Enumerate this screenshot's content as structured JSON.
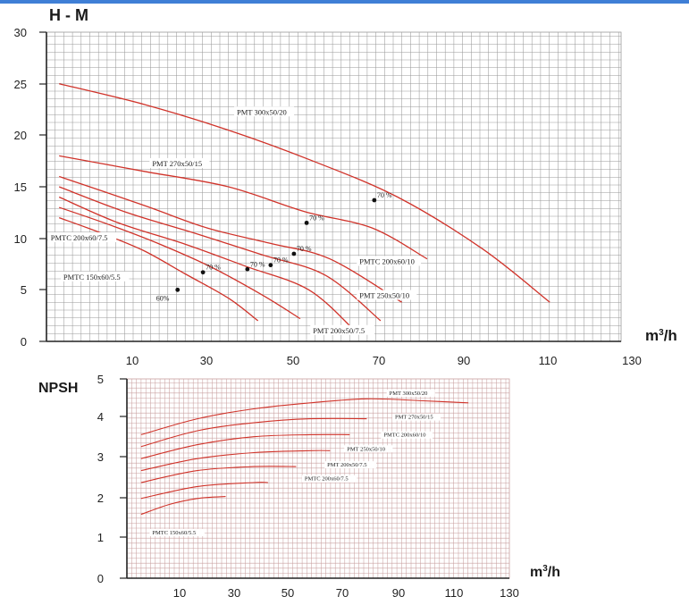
{
  "chart_data": [
    {
      "type": "line",
      "title": "H - M",
      "xlabel": "m³/h",
      "xlim": [
        0,
        130
      ],
      "ylim": [
        0,
        30
      ],
      "x_ticks": [
        "10",
        "30",
        "50",
        "70",
        "90",
        "110",
        "130"
      ],
      "y_ticks": [
        "0",
        "5",
        "10",
        "15",
        "20",
        "25",
        "30"
      ],
      "grid": true,
      "colors": {
        "curve": "#d0332a",
        "grid": "#9a9a9a",
        "axis": "#222222"
      },
      "series": [
        {
          "name": "PMT 300x50/20",
          "points": [
            [
              10,
              25
            ],
            [
              30,
              23
            ],
            [
              50,
              20.5
            ],
            [
              70,
              17.5
            ],
            [
              90,
              14
            ],
            [
              110,
              9
            ],
            [
              126,
              3.8
            ]
          ],
          "label_at": [
            52,
            22
          ]
        },
        {
          "name": "PMT 270x50/15",
          "points": [
            [
              10,
              18
            ],
            [
              30,
              16.5
            ],
            [
              50,
              15
            ],
            [
              68,
              12.6
            ],
            [
              84,
              11
            ],
            [
              97,
              8
            ]
          ],
          "label_at": [
            32,
            17
          ]
        },
        {
          "name": "PMTC 200x60/10",
          "points": [
            [
              10,
              16
            ],
            [
              30,
              13.2
            ],
            [
              45,
              11
            ],
            [
              60,
              9.5
            ],
            [
              74,
              8
            ],
            [
              91,
              3.8
            ]
          ],
          "label_at": [
            81,
            7.5
          ]
        },
        {
          "name": "PMT 250x50/10",
          "points": [
            [
              10,
              15
            ],
            [
              26,
              12.5
            ],
            [
              42,
              10.5
            ],
            [
              58,
              8.4
            ],
            [
              73,
              6.4
            ],
            [
              86,
              2
            ]
          ],
          "label_at": [
            81,
            4.2
          ]
        },
        {
          "name": "PMT 200x50/7.5",
          "points": [
            [
              10,
              14
            ],
            [
              24,
              11.5
            ],
            [
              40,
              9.4
            ],
            [
              54,
              7.3
            ],
            [
              69,
              5
            ],
            [
              80,
              1
            ]
          ],
          "label_at": [
            70,
            0.8
          ]
        },
        {
          "name": "PMTC 200x60/7.5",
          "points": [
            [
              10,
              13
            ],
            [
              22,
              11.3
            ],
            [
              34,
              9.4
            ],
            [
              46,
              7.2
            ],
            [
              58,
              4.5
            ],
            [
              67,
              2.2
            ]
          ],
          "label_at": [
            8,
            9.8
          ]
        },
        {
          "name": "PMTC 150x60/5.5",
          "points": [
            [
              10,
              12
            ],
            [
              20,
              10.5
            ],
            [
              30,
              8.8
            ],
            [
              40,
              6.5
            ],
            [
              50,
              4.2
            ],
            [
              57,
              2
            ]
          ],
          "label_at": [
            11,
            6
          ]
        }
      ],
      "efficiency_points": [
        {
          "label": "70 %",
          "x": 84.5,
          "y": 13.7
        },
        {
          "label": "70 %",
          "x": 68.5,
          "y": 11.5
        },
        {
          "label": "70 %",
          "x": 65.5,
          "y": 8.5
        },
        {
          "label": "70 %",
          "x": 60,
          "y": 7.4
        },
        {
          "label": "70 %",
          "x": 54.5,
          "y": 7
        },
        {
          "label": "70 %",
          "x": 44,
          "y": 6.7
        },
        {
          "label": "60%",
          "x": 38,
          "y": 5
        }
      ]
    },
    {
      "type": "line",
      "title": "NPSH",
      "xlabel": "m³/h",
      "xlim": [
        0,
        130
      ],
      "ylim": [
        0,
        5
      ],
      "x_ticks": [
        "10",
        "30",
        "50",
        "70",
        "90",
        "110",
        "130"
      ],
      "y_ticks": [
        "0",
        "1",
        "2",
        "3",
        "4",
        "5"
      ],
      "grid": true,
      "colors": {
        "curve": "#d0332a",
        "grid": "#c9a0a0",
        "axis": "#222222"
      },
      "series": [
        {
          "name": "PMT 300x50/20",
          "points": [
            [
              10,
              3.6
            ],
            [
              30,
              4
            ],
            [
              50,
              4.25
            ],
            [
              70,
              4.4
            ],
            [
              90,
              4.5
            ],
            [
              110,
              4.45
            ],
            [
              126,
              4.4
            ]
          ],
          "label_at": [
            98,
            4.6
          ]
        },
        {
          "name": "PMT 270x50/15",
          "points": [
            [
              10,
              3.3
            ],
            [
              30,
              3.7
            ],
            [
              50,
              3.9
            ],
            [
              70,
              4
            ],
            [
              90,
              4
            ]
          ],
          "label_at": [
            100,
            4
          ]
        },
        {
          "name": "PMTC 200x60/10",
          "points": [
            [
              10,
              3
            ],
            [
              30,
              3.35
            ],
            [
              50,
              3.55
            ],
            [
              70,
              3.6
            ],
            [
              84,
              3.6
            ]
          ],
          "label_at": [
            96,
            3.55
          ]
        },
        {
          "name": "PMT 250x50/10",
          "points": [
            [
              10,
              2.7
            ],
            [
              30,
              3
            ],
            [
              50,
              3.15
            ],
            [
              70,
              3.2
            ],
            [
              77,
              3.2
            ]
          ],
          "label_at": [
            83,
            3.2
          ]
        },
        {
          "name": "PMT 200x50/7.5",
          "points": [
            [
              10,
              2.4
            ],
            [
              30,
              2.7
            ],
            [
              50,
              2.8
            ],
            [
              65,
              2.8
            ]
          ],
          "label_at": [
            76,
            2.8
          ]
        },
        {
          "name": "PMTC 200x60/7.5",
          "points": [
            [
              10,
              2
            ],
            [
              30,
              2.3
            ],
            [
              50,
              2.4
            ],
            [
              55,
              2.4
            ]
          ],
          "label_at": [
            68,
            2.45
          ]
        },
        {
          "name": "PMTC 150x60/5.5",
          "points": [
            [
              10,
              1.6
            ],
            [
              20,
              1.85
            ],
            [
              30,
              2
            ],
            [
              40,
              2.05
            ]
          ],
          "label_at": [
            14,
            1.1
          ]
        }
      ]
    }
  ]
}
